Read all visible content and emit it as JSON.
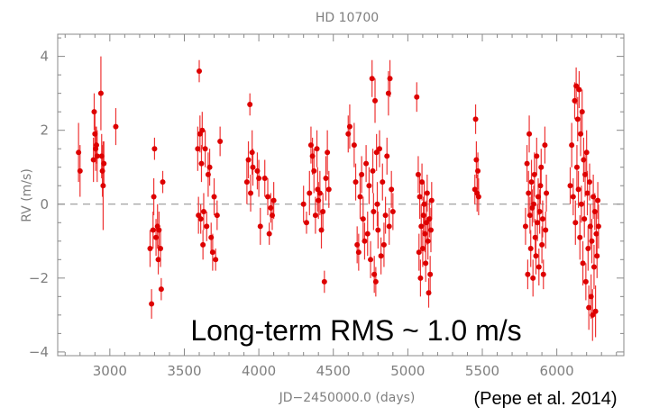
{
  "chart_data": {
    "type": "scatter",
    "title": "HD 10700",
    "xlabel": "JD−2450000.0 (days)",
    "ylabel": "RV (m/s)",
    "xlim": [
      2650,
      6450
    ],
    "ylim": [
      -4.1,
      4.6
    ],
    "x_ticks": [
      3000,
      3500,
      4000,
      4500,
      5000,
      5500,
      6000
    ],
    "x_tick_labels": [
      "3000",
      "3500",
      "4000",
      "4500",
      "5000",
      "5500",
      "6000"
    ],
    "y_ticks": [
      -4,
      -2,
      0,
      2,
      4
    ],
    "y_tick_labels": [
      "−4",
      "−2",
      "0",
      "2",
      "4"
    ],
    "reference_line": 0,
    "grid": false,
    "marker_color": "#dd0000",
    "errorbar_color": "#ee3333",
    "series": [
      {
        "points": [
          [
            2790,
            1.4,
            0.8
          ],
          [
            2800,
            0.9,
            0.7
          ],
          [
            2890,
            1.2,
            0.6
          ],
          [
            2895,
            2.5,
            0.5
          ],
          [
            2900,
            1.9,
            0.6
          ],
          [
            2905,
            1.5,
            0.6
          ],
          [
            2910,
            1.6,
            0.5
          ],
          [
            2915,
            1.3,
            0.7
          ],
          [
            2940,
            3.0,
            1.0
          ],
          [
            2945,
            1.3,
            0.6
          ],
          [
            2950,
            0.9,
            0.7
          ],
          [
            2955,
            0.5,
            1.2
          ],
          [
            2960,
            1.1,
            0.6
          ],
          [
            3040,
            2.1,
            0.5
          ],
          [
            3270,
            -1.2,
            0.5
          ],
          [
            3280,
            -2.7,
            0.4
          ],
          [
            3290,
            -0.7,
            0.5
          ],
          [
            3295,
            0.2,
            0.5
          ],
          [
            3300,
            1.5,
            0.3
          ],
          [
            3310,
            -0.9,
            0.5
          ],
          [
            3320,
            -0.6,
            0.6
          ],
          [
            3325,
            -1.5,
            0.4
          ],
          [
            3330,
            -0.7,
            0.5
          ],
          [
            3340,
            -1.2,
            0.5
          ],
          [
            3345,
            -2.3,
            0.3
          ],
          [
            3355,
            0.6,
            0.3
          ],
          [
            3590,
            1.5,
            0.6
          ],
          [
            3595,
            -0.3,
            0.5
          ],
          [
            3600,
            3.6,
            0.3
          ],
          [
            3605,
            1.9,
            0.5
          ],
          [
            3610,
            -0.4,
            0.4
          ],
          [
            3615,
            1.1,
            0.5
          ],
          [
            3620,
            2.0,
            0.5
          ],
          [
            3625,
            -1.1,
            0.4
          ],
          [
            3630,
            -0.2,
            0.5
          ],
          [
            3640,
            1.5,
            0.5
          ],
          [
            3650,
            -0.6,
            0.4
          ],
          [
            3660,
            0.8,
            0.6
          ],
          [
            3670,
            1.0,
            0.5
          ],
          [
            3680,
            -0.9,
            0.4
          ],
          [
            3690,
            -1.3,
            0.5
          ],
          [
            3700,
            0.2,
            0.5
          ],
          [
            3710,
            -1.5,
            0.3
          ],
          [
            3720,
            -0.3,
            0.4
          ],
          [
            3740,
            1.7,
            0.4
          ],
          [
            3920,
            0.6,
            0.6
          ],
          [
            3930,
            1.2,
            0.5
          ],
          [
            3940,
            2.7,
            0.3
          ],
          [
            3945,
            0.3,
            0.5
          ],
          [
            3955,
            1.4,
            0.6
          ],
          [
            3960,
            1.0,
            0.5
          ],
          [
            3990,
            0.9,
            0.5
          ],
          [
            4000,
            0.7,
            0.5
          ],
          [
            4010,
            -0.6,
            0.5
          ],
          [
            4040,
            0.7,
            0.5
          ],
          [
            4060,
            0.2,
            0.5
          ],
          [
            4070,
            -0.8,
            0.3
          ],
          [
            4080,
            -0.1,
            0.4
          ],
          [
            4090,
            -0.3,
            0.4
          ],
          [
            4100,
            0.1,
            0.5
          ],
          [
            4300,
            0.0,
            0.5
          ],
          [
            4320,
            -0.5,
            0.3
          ],
          [
            4340,
            0.3,
            0.6
          ],
          [
            4350,
            1.6,
            0.5
          ],
          [
            4360,
            1.3,
            0.5
          ],
          [
            4370,
            0.9,
            0.6
          ],
          [
            4380,
            -0.3,
            0.5
          ],
          [
            4390,
            1.5,
            0.5
          ],
          [
            4395,
            0.4,
            0.6
          ],
          [
            4400,
            0.1,
            0.5
          ],
          [
            4410,
            0.3,
            0.6
          ],
          [
            4420,
            -0.7,
            0.5
          ],
          [
            4430,
            -0.2,
            0.5
          ],
          [
            4440,
            -2.1,
            0.3
          ],
          [
            4450,
            0.7,
            0.6
          ],
          [
            4460,
            1.4,
            0.6
          ],
          [
            4470,
            0.4,
            0.5
          ],
          [
            4600,
            1.9,
            0.5
          ],
          [
            4610,
            2.1,
            0.6
          ],
          [
            4640,
            1.6,
            0.6
          ],
          [
            4650,
            0.6,
            0.5
          ],
          [
            4660,
            -1.1,
            0.5
          ],
          [
            4670,
            -1.3,
            0.5
          ],
          [
            4680,
            0.2,
            0.6
          ],
          [
            4690,
            0.8,
            0.5
          ],
          [
            4700,
            -0.4,
            0.6
          ],
          [
            4710,
            -1.0,
            0.5
          ],
          [
            4720,
            1.1,
            0.5
          ],
          [
            4730,
            -0.8,
            0.6
          ],
          [
            4740,
            0.5,
            0.5
          ],
          [
            4750,
            -1.5,
            0.5
          ],
          [
            4760,
            3.4,
            0.5
          ],
          [
            4765,
            0.9,
            0.6
          ],
          [
            4770,
            -0.2,
            0.5
          ],
          [
            4775,
            -1.9,
            0.5
          ],
          [
            4780,
            2.8,
            0.6
          ],
          [
            4785,
            -2.1,
            0.4
          ],
          [
            4790,
            1.4,
            0.5
          ],
          [
            4795,
            0.0,
            0.6
          ],
          [
            4800,
            -0.7,
            0.5
          ],
          [
            4810,
            1.5,
            0.5
          ],
          [
            4820,
            -1.4,
            0.5
          ],
          [
            4830,
            0.6,
            0.5
          ],
          [
            4840,
            -1.1,
            0.6
          ],
          [
            4850,
            -0.3,
            0.5
          ],
          [
            4860,
            1.3,
            0.5
          ],
          [
            4870,
            3.0,
            0.6
          ],
          [
            4875,
            -0.6,
            0.5
          ],
          [
            4880,
            3.4,
            0.5
          ],
          [
            4890,
            0.4,
            0.5
          ],
          [
            4900,
            -0.2,
            0.5
          ],
          [
            5060,
            2.9,
            0.4
          ],
          [
            5070,
            0.8,
            0.5
          ],
          [
            5075,
            -1.3,
            0.5
          ],
          [
            5080,
            0.2,
            0.6
          ],
          [
            5085,
            -2.0,
            0.5
          ],
          [
            5090,
            -0.6,
            0.6
          ],
          [
            5095,
            0.6,
            0.5
          ],
          [
            5100,
            -1.2,
            0.5
          ],
          [
            5105,
            -0.3,
            0.5
          ],
          [
            5110,
            0.0,
            0.6
          ],
          [
            5115,
            -0.8,
            0.5
          ],
          [
            5120,
            -1.6,
            0.5
          ],
          [
            5125,
            -0.5,
            0.6
          ],
          [
            5130,
            0.3,
            0.5
          ],
          [
            5135,
            -1.0,
            0.5
          ],
          [
            5140,
            -2.4,
            0.4
          ],
          [
            5145,
            -0.4,
            0.5
          ],
          [
            5150,
            -1.9,
            0.5
          ],
          [
            5155,
            -0.7,
            0.6
          ],
          [
            5160,
            0.1,
            0.5
          ],
          [
            5450,
            0.4,
            0.4
          ],
          [
            5455,
            2.3,
            0.4
          ],
          [
            5460,
            1.2,
            0.5
          ],
          [
            5465,
            0.3,
            0.5
          ],
          [
            5470,
            0.9,
            0.5
          ],
          [
            5475,
            0.2,
            0.5
          ],
          [
            5790,
            -0.6,
            0.5
          ],
          [
            5800,
            1.1,
            0.5
          ],
          [
            5805,
            -1.9,
            0.4
          ],
          [
            5810,
            0.3,
            0.6
          ],
          [
            5815,
            1.9,
            0.5
          ],
          [
            5820,
            -0.3,
            0.5
          ],
          [
            5825,
            -1.2,
            0.5
          ],
          [
            5830,
            0.6,
            0.6
          ],
          [
            5835,
            -0.1,
            0.5
          ],
          [
            5840,
            -2.0,
            0.5
          ],
          [
            5845,
            0.0,
            0.5
          ],
          [
            5850,
            0.8,
            0.6
          ],
          [
            5855,
            -0.9,
            0.5
          ],
          [
            5860,
            -1.4,
            0.5
          ],
          [
            5865,
            1.3,
            0.5
          ],
          [
            5870,
            -0.5,
            0.5
          ],
          [
            5875,
            0.2,
            0.5
          ],
          [
            5880,
            -1.7,
            0.5
          ],
          [
            5885,
            -0.2,
            0.6
          ],
          [
            5890,
            0.5,
            0.5
          ],
          [
            5895,
            1.0,
            0.5
          ],
          [
            5900,
            -1.1,
            0.5
          ],
          [
            5905,
            -0.4,
            0.5
          ],
          [
            5910,
            -1.9,
            0.4
          ],
          [
            5920,
            1.6,
            0.5
          ],
          [
            5925,
            -0.7,
            0.5
          ],
          [
            5930,
            0.3,
            0.5
          ],
          [
            6090,
            0.5,
            0.5
          ],
          [
            6100,
            1.6,
            0.6
          ],
          [
            6110,
            0.2,
            0.5
          ],
          [
            6120,
            2.8,
            0.5
          ],
          [
            6125,
            -0.5,
            0.6
          ],
          [
            6130,
            3.2,
            0.5
          ],
          [
            6135,
            1.0,
            0.6
          ],
          [
            6140,
            2.3,
            0.6
          ],
          [
            6145,
            0.4,
            0.5
          ],
          [
            6150,
            3.1,
            0.5
          ],
          [
            6155,
            -0.9,
            0.6
          ],
          [
            6160,
            1.9,
            0.6
          ],
          [
            6165,
            0.0,
            0.5
          ],
          [
            6170,
            2.5,
            0.6
          ],
          [
            6175,
            -1.6,
            0.6
          ],
          [
            6180,
            1.2,
            0.6
          ],
          [
            6185,
            -0.4,
            0.5
          ],
          [
            6190,
            0.8,
            0.6
          ],
          [
            6195,
            -2.1,
            0.5
          ],
          [
            6200,
            1.4,
            0.6
          ],
          [
            6205,
            0.3,
            0.6
          ],
          [
            6210,
            -1.2,
            0.6
          ],
          [
            6215,
            -2.8,
            0.6
          ],
          [
            6220,
            0.6,
            0.5
          ],
          [
            6225,
            -0.6,
            0.6
          ],
          [
            6230,
            -2.5,
            0.6
          ],
          [
            6235,
            -1.0,
            0.6
          ],
          [
            6240,
            -3.0,
            0.7
          ],
          [
            6245,
            0.2,
            0.6
          ],
          [
            6250,
            -1.7,
            0.6
          ],
          [
            6255,
            -0.2,
            0.5
          ],
          [
            6260,
            -2.9,
            0.7
          ],
          [
            6265,
            -0.8,
            0.6
          ],
          [
            6270,
            -1.4,
            0.6
          ],
          [
            6275,
            0.1,
            0.5
          ],
          [
            6280,
            -0.6,
            0.6
          ]
        ]
      }
    ],
    "annotations": [
      {
        "text": "Long-term RMS ~ 1.0 m/s",
        "role": "rms-note"
      },
      {
        "text": "(Pepe et al. 2014)",
        "role": "citation"
      }
    ]
  }
}
